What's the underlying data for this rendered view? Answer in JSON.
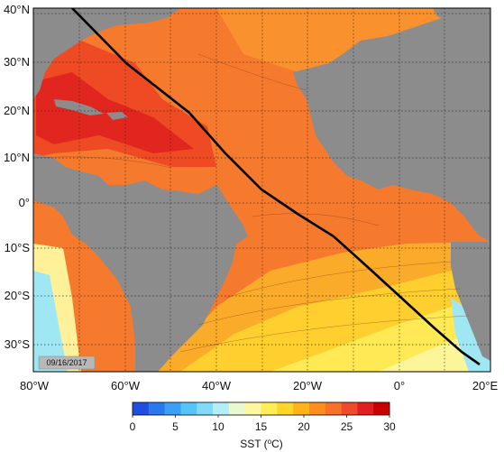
{
  "map": {
    "date_stamp": "09/16/2017",
    "lat_labels": [
      "40°N",
      "30°N",
      "20°N",
      "10°N",
      "0°",
      "10°S",
      "20°S",
      "30°S"
    ],
    "lon_labels": [
      "80°W",
      "60°W",
      "40°W",
      "20°W",
      "0°",
      "20°E"
    ],
    "land_color": "#8c8c8c",
    "track_color": "#000000",
    "grid": "dotted"
  },
  "colorbar": {
    "title": "SST (",
    "title_sup": "o",
    "title_end": "C)",
    "tick_labels": [
      "0",
      "5",
      "10",
      "15",
      "20",
      "25",
      "30"
    ],
    "range": [
      0,
      30
    ],
    "colors": [
      "#1f4fe0",
      "#2a78ee",
      "#3aa0f5",
      "#55c4f8",
      "#7fdcf8",
      "#b2eef7",
      "#e8f9d0",
      "#fdf7a0",
      "#ffee55",
      "#ffd52a",
      "#ffb21a",
      "#ff8e1e",
      "#f9702a",
      "#f04a2a",
      "#e02020",
      "#c80000"
    ]
  }
}
